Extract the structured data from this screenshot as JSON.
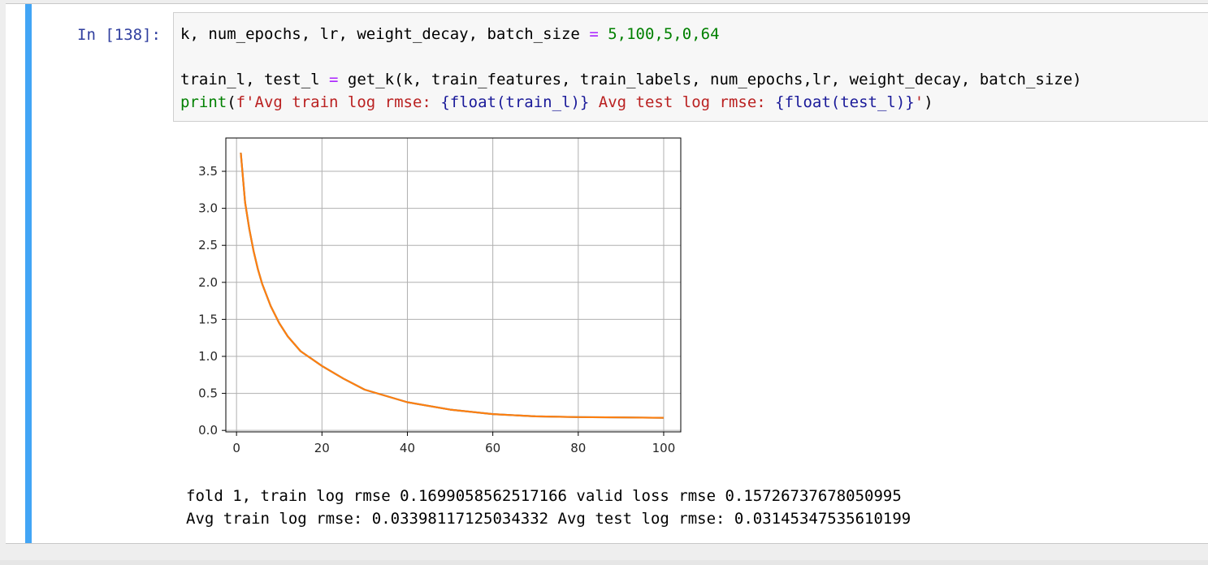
{
  "cell": {
    "prompt": "In [138]:",
    "code": {
      "line1": {
        "vars": "k, num_epochs, lr, weight_decay, batch_size ",
        "eq": "=",
        "sp": " ",
        "values": "5,100,5,0,64"
      },
      "line2": {
        "lhs": "train_l, test_l ",
        "eq": "=",
        "rhs": " get_k(k, train_features, train_labels, num_epochs,lr, weight_decay, batch_size)"
      },
      "line3": {
        "func": "print",
        "open": "(",
        "str_a": "f'Avg train log rmse: ",
        "interp_a": "{float(train_l)}",
        "str_b": " Avg test log rmse: ",
        "interp_b": "{float(test_l)}",
        "str_c": "'",
        "close": ")"
      }
    },
    "output": {
      "line1": "fold 1, train log rmse 0.1699058562517166 valid loss rmse 0.15726737678050995",
      "line2": "Avg train log rmse: 0.03398117125034332 Avg test log rmse: 0.03145347535610199"
    }
  },
  "colors": {
    "selected_bar": "#42a5f5",
    "prompt": "#303f9f",
    "train_line": "#1f77b4",
    "test_line": "#ff7f0e",
    "grid": "#b0b0b0"
  },
  "chart_data": {
    "type": "line",
    "title": "",
    "xlabel": "",
    "ylabel": "",
    "xlim": [
      -2.5,
      104
    ],
    "ylim": [
      -0.02,
      3.95
    ],
    "xticks": [
      "0",
      "20",
      "40",
      "60",
      "80",
      "100"
    ],
    "yticks": [
      "0.0",
      "0.5",
      "1.0",
      "1.5",
      "2.0",
      "2.5",
      "3.0",
      "3.5"
    ],
    "grid": true,
    "legend": "none",
    "x": [
      1,
      2,
      3,
      4,
      5,
      6,
      8,
      10,
      12,
      15,
      20,
      25,
      30,
      40,
      50,
      60,
      70,
      80,
      90,
      100
    ],
    "series": [
      {
        "values": [
          3.75,
          3.08,
          2.72,
          2.42,
          2.18,
          1.98,
          1.68,
          1.45,
          1.27,
          1.07,
          0.87,
          0.7,
          0.55,
          0.38,
          0.28,
          0.22,
          0.19,
          0.18,
          0.175,
          0.17
        ]
      },
      {
        "values": [
          3.75,
          3.08,
          2.72,
          2.42,
          2.18,
          1.98,
          1.68,
          1.45,
          1.27,
          1.07,
          0.87,
          0.7,
          0.55,
          0.38,
          0.28,
          0.22,
          0.19,
          0.18,
          0.175,
          0.17
        ]
      }
    ]
  }
}
